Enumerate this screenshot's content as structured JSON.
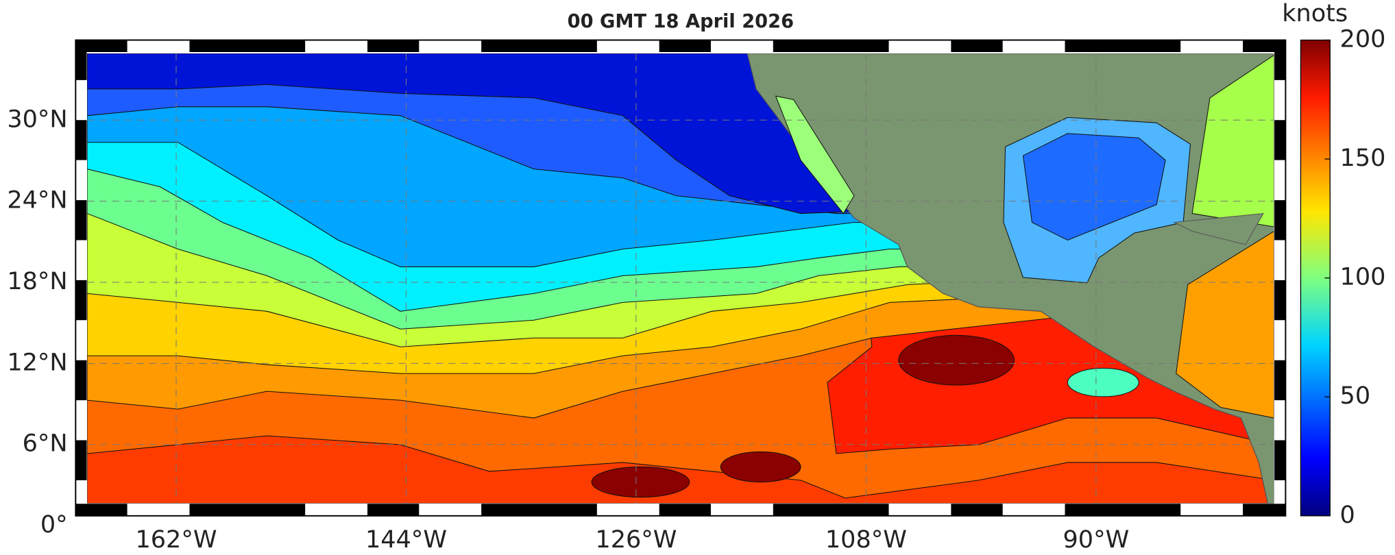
{
  "title": "00 GMT 18 April 2026",
  "map": {
    "xlim": [
      -169,
      -76
    ],
    "ylim": [
      0,
      35
    ],
    "grid": true,
    "xticks": [
      {
        "value": -162,
        "label": "162°W"
      },
      {
        "value": -144,
        "label": "144°W"
      },
      {
        "value": -126,
        "label": "126°W"
      },
      {
        "value": -108,
        "label": "108°W"
      },
      {
        "value": -90,
        "label": "90°W"
      }
    ],
    "yticks": [
      {
        "value": 0,
        "label": "0°"
      },
      {
        "value": 6,
        "label": "6°N"
      },
      {
        "value": 12,
        "label": "12°N"
      },
      {
        "value": 18,
        "label": "18°N"
      },
      {
        "value": 24,
        "label": "24°N"
      },
      {
        "value": 30,
        "label": "30°N"
      }
    ]
  },
  "colorbar": {
    "label": "knots",
    "clim": [
      0,
      200
    ],
    "ticks": [
      0,
      50,
      100,
      150,
      200
    ]
  }
}
